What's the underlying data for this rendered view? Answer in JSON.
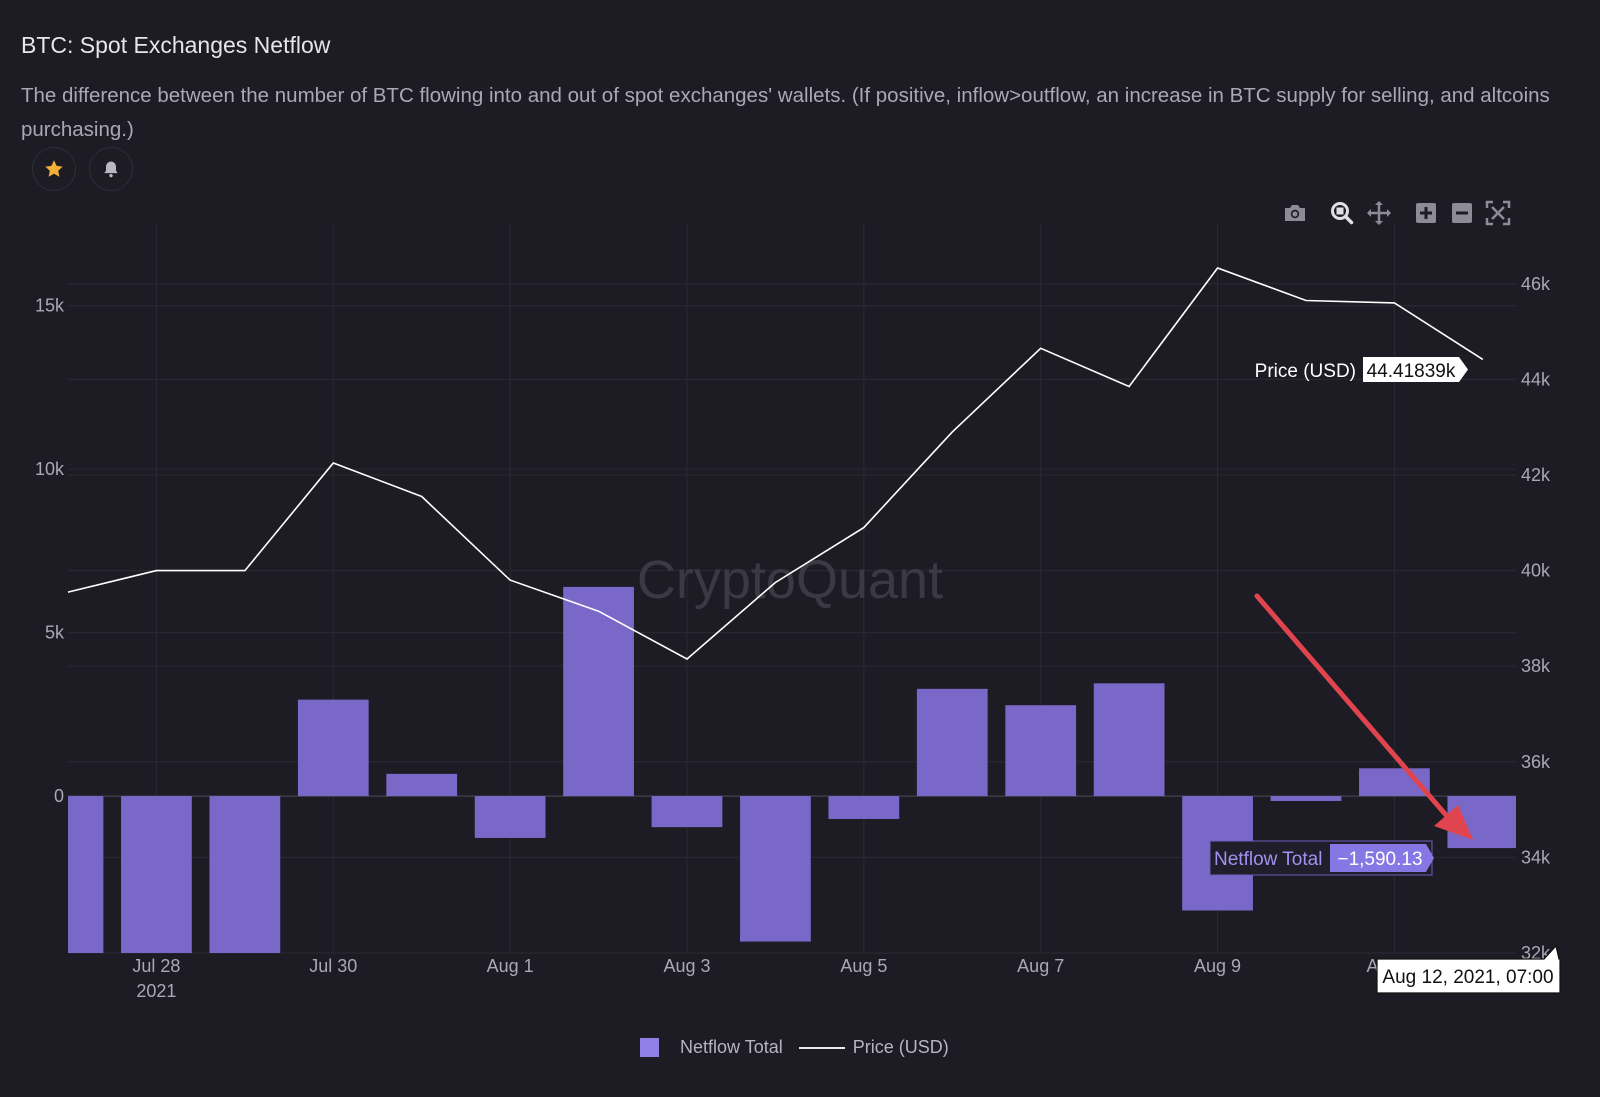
{
  "header": {
    "title": "BTC: Spot Exchanges Netflow",
    "description": "The difference between the number of BTC flowing into and out of spot exchanges' wallets. (If positive, inflow>outflow, an increase in BTC supply for selling, and altcoins purchasing.)"
  },
  "actions": {
    "favorite_icon": "star-icon",
    "alert_icon": "bell-icon"
  },
  "toolbar": [
    "camera-icon",
    "zoom-icon",
    "pan-icon",
    "zoom-in-icon",
    "zoom-out-icon",
    "autoscale-icon"
  ],
  "colors": {
    "bar": "#7a68c8",
    "line": "#ffffff",
    "background": "#1d1c24",
    "annotation_arrow": "#e0444f"
  },
  "watermark": "CryptoQuant",
  "chart_data": {
    "type": "bar",
    "x_ticks": [
      {
        "label": "Jul 28",
        "sublabel": "2021",
        "date": "2021-07-28"
      },
      {
        "label": "Jul 30",
        "date": "2021-07-30"
      },
      {
        "label": "Aug 1",
        "date": "2021-08-01"
      },
      {
        "label": "Aug 3",
        "date": "2021-08-03"
      },
      {
        "label": "Aug 5",
        "date": "2021-08-05"
      },
      {
        "label": "Aug 7",
        "date": "2021-08-07"
      },
      {
        "label": "Aug 9",
        "date": "2021-08-09"
      },
      {
        "label": "Aug 11",
        "date": "2021-08-11"
      }
    ],
    "x": [
      "2021-07-27",
      "2021-07-28",
      "2021-07-29",
      "2021-07-30",
      "2021-07-31",
      "2021-08-01",
      "2021-08-02",
      "2021-08-03",
      "2021-08-04",
      "2021-08-05",
      "2021-08-06",
      "2021-08-07",
      "2021-08-08",
      "2021-08-09",
      "2021-08-10",
      "2021-08-11",
      "2021-08-12"
    ],
    "xlim": [
      "2021-07-27",
      "2021-08-12T09:00"
    ],
    "series": [
      {
        "name": "Netflow Total",
        "type": "bar",
        "axis": "left",
        "values": [
          -4800,
          -4800,
          -4800,
          2950,
          680,
          -1280,
          6400,
          -950,
          -4450,
          -700,
          3280,
          2780,
          3450,
          -3500,
          -150,
          850,
          -1590.13
        ]
      },
      {
        "name": "Price (USD)",
        "type": "line",
        "axis": "right",
        "values": [
          39550,
          40000,
          40000,
          42250,
          41550,
          39800,
          39150,
          38150,
          39750,
          40900,
          42900,
          44650,
          43850,
          46330,
          45650,
          45600,
          44418.39
        ]
      }
    ],
    "y_left": {
      "ticks": [
        0,
        5000,
        10000,
        15000
      ],
      "tick_labels": [
        "0",
        "5k",
        "10k",
        "15k"
      ],
      "lim": [
        -4800,
        17500
      ]
    },
    "y_right": {
      "ticks": [
        32000,
        34000,
        36000,
        38000,
        40000,
        42000,
        44000,
        46000
      ],
      "tick_labels": [
        "32k",
        "34k",
        "36k",
        "38k",
        "40k",
        "42k",
        "44k",
        "46k"
      ],
      "lim": [
        32000,
        47250
      ]
    },
    "hover": {
      "date_label": "Aug 12, 2021, 07:00",
      "price_label": "Price (USD)",
      "price_value": "44.41839k",
      "netflow_label": "Netflow Total",
      "netflow_value": "−1,590.13"
    },
    "legend": {
      "position": "bottom",
      "items": [
        "Netflow Total",
        "Price (USD)"
      ]
    }
  }
}
